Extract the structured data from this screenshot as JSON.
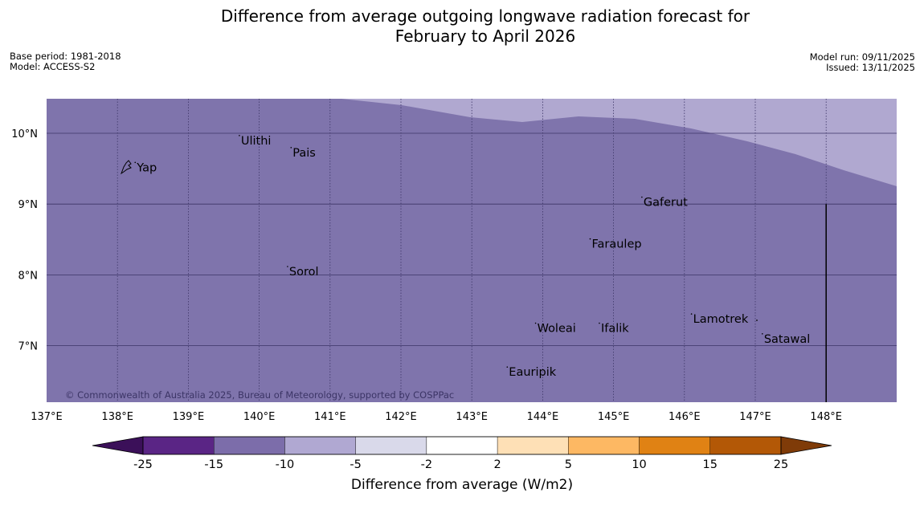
{
  "title": {
    "line1": "Difference from average outgoing longwave radiation forecast for",
    "line2": "February to April 2026"
  },
  "meta": {
    "base_period": "Base period: 1981-2018",
    "model": "Model: ACCESS-S2",
    "model_run": "Model run: 09/11/2025",
    "issued": "Issued: 13/11/2025"
  },
  "map": {
    "lon_labels": [
      "137°E",
      "138°E",
      "139°E",
      "140°E",
      "141°E",
      "142°E",
      "143°E",
      "144°E",
      "145°E",
      "146°E",
      "147°E",
      "148°E"
    ],
    "lat_labels": [
      "10°N",
      "9°N",
      "8°N",
      "7°N"
    ],
    "credit": "© Commonwealth of Australia 2025, Bureau of Meteorology, supported by COSPPac",
    "places": [
      {
        "name": "Yap",
        "lon": 138.25,
        "lat": 9.52
      },
      {
        "name": "Ulithi",
        "lon": 139.72,
        "lat": 9.9
      },
      {
        "name": "Pais",
        "lon": 140.45,
        "lat": 9.73
      },
      {
        "name": "Gaferut",
        "lon": 145.4,
        "lat": 9.03
      },
      {
        "name": "Faraulep",
        "lon": 144.67,
        "lat": 8.44
      },
      {
        "name": "Sorol",
        "lon": 140.4,
        "lat": 8.05
      },
      {
        "name": "Woleai",
        "lon": 143.9,
        "lat": 7.25
      },
      {
        "name": "Ifalik",
        "lon": 144.8,
        "lat": 7.25
      },
      {
        "name": "Lamotrek",
        "lon": 146.1,
        "lat": 7.38
      },
      {
        "name": "Satawal",
        "lon": 147.1,
        "lat": 7.1
      },
      {
        "name": "Eauripik",
        "lon": 143.5,
        "lat": 6.63
      }
    ],
    "colors": {
      "main": "#7f74ac",
      "light": "#b0a8d0",
      "grid": "#3c3566"
    }
  },
  "colorbar": {
    "label": "Difference from average (W/m2)",
    "ticks": [
      "-25",
      "-15",
      "-10",
      "-5",
      "-2",
      "2",
      "5",
      "10",
      "15",
      "25"
    ],
    "colors": [
      "#3b1059",
      "#5a2585",
      "#7c6daa",
      "#b0a8d2",
      "#d9d9ea",
      "#ffffff",
      "#fee0b6",
      "#fdb863",
      "#e08214",
      "#b35806",
      "#7f3b08"
    ]
  }
}
